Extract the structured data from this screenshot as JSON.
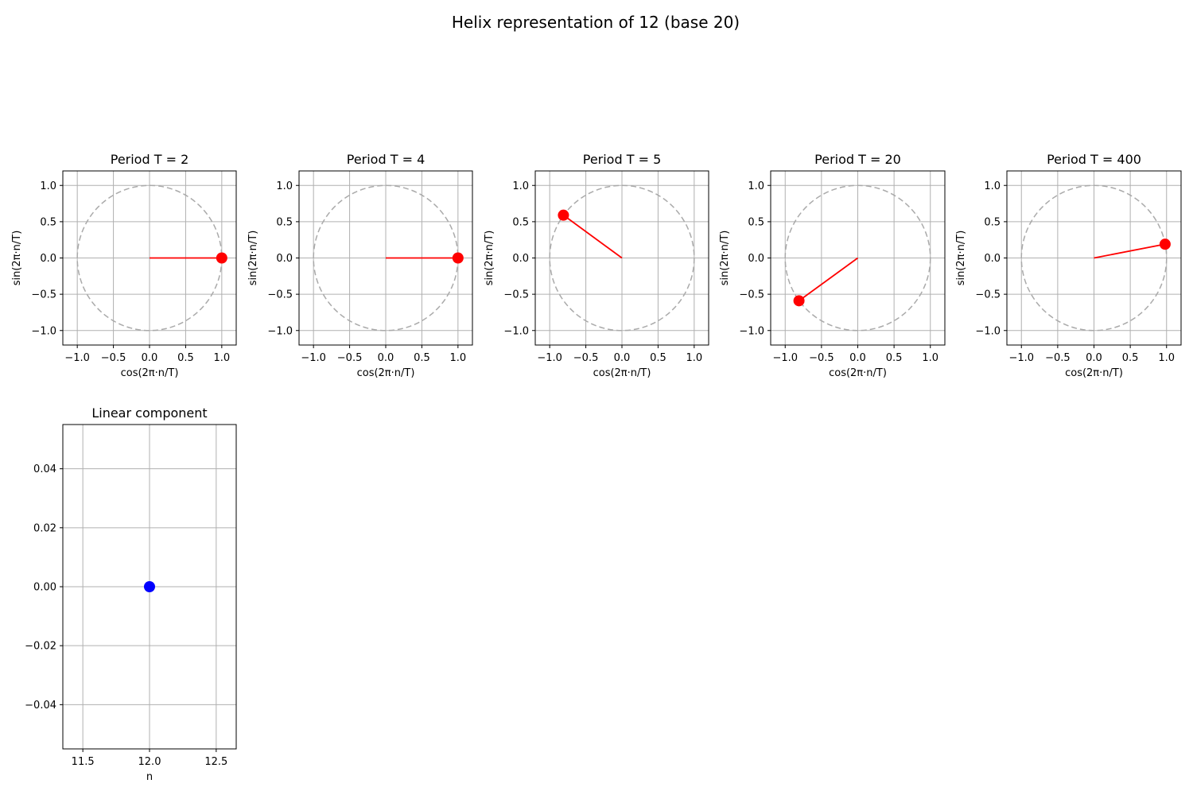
{
  "figure": {
    "title": "Helix representation of 12 (base 20)"
  },
  "chart_data": [
    {
      "type": "scatter",
      "title": "Period T = 2",
      "period": 2,
      "xlabel": "cos(2π·n/T)",
      "ylabel": "sin(2π·n/T)",
      "xlim": [
        -1.2,
        1.2
      ],
      "ylim": [
        -1.2,
        1.2
      ],
      "xticks": [
        -1.0,
        -0.5,
        0.0,
        0.5,
        1.0
      ],
      "yticks": [
        -1.0,
        -0.5,
        0.0,
        0.5,
        1.0
      ],
      "xtick_labels": [
        "−1.0",
        "−0.5",
        "0.0",
        "0.5",
        "1.0"
      ],
      "ytick_labels": [
        "−1.0",
        "−0.5",
        "0.0",
        "0.5",
        "1.0"
      ],
      "point": {
        "x": 1.0,
        "y": 0.0
      },
      "unit_circle": true,
      "grid": true,
      "point_color": "#ff0000",
      "circle_color": "#aaaaaa"
    },
    {
      "type": "scatter",
      "title": "Period T = 4",
      "period": 4,
      "xlabel": "cos(2π·n/T)",
      "ylabel": "sin(2π·n/T)",
      "xlim": [
        -1.2,
        1.2
      ],
      "ylim": [
        -1.2,
        1.2
      ],
      "xticks": [
        -1.0,
        -0.5,
        0.0,
        0.5,
        1.0
      ],
      "yticks": [
        -1.0,
        -0.5,
        0.0,
        0.5,
        1.0
      ],
      "xtick_labels": [
        "−1.0",
        "−0.5",
        "0.0",
        "0.5",
        "1.0"
      ],
      "ytick_labels": [
        "−1.0",
        "−0.5",
        "0.0",
        "0.5",
        "1.0"
      ],
      "point": {
        "x": 1.0,
        "y": 0.0
      },
      "unit_circle": true,
      "grid": true,
      "point_color": "#ff0000",
      "circle_color": "#aaaaaa"
    },
    {
      "type": "scatter",
      "title": "Period T = 5",
      "period": 5,
      "xlabel": "cos(2π·n/T)",
      "ylabel": "sin(2π·n/T)",
      "xlim": [
        -1.2,
        1.2
      ],
      "ylim": [
        -1.2,
        1.2
      ],
      "xticks": [
        -1.0,
        -0.5,
        0.0,
        0.5,
        1.0
      ],
      "yticks": [
        -1.0,
        -0.5,
        0.0,
        0.5,
        1.0
      ],
      "xtick_labels": [
        "−1.0",
        "−0.5",
        "0.0",
        "0.5",
        "1.0"
      ],
      "ytick_labels": [
        "−1.0",
        "−0.5",
        "0.0",
        "0.5",
        "1.0"
      ],
      "point": {
        "x": -0.81,
        "y": 0.59
      },
      "unit_circle": true,
      "grid": true,
      "point_color": "#ff0000",
      "circle_color": "#aaaaaa"
    },
    {
      "type": "scatter",
      "title": "Period T = 20",
      "period": 20,
      "xlabel": "cos(2π·n/T)",
      "ylabel": "sin(2π·n/T)",
      "xlim": [
        -1.2,
        1.2
      ],
      "ylim": [
        -1.2,
        1.2
      ],
      "xticks": [
        -1.0,
        -0.5,
        0.0,
        0.5,
        1.0
      ],
      "yticks": [
        -1.0,
        -0.5,
        0.0,
        0.5,
        1.0
      ],
      "xtick_labels": [
        "−1.0",
        "−0.5",
        "0.0",
        "0.5",
        "1.0"
      ],
      "ytick_labels": [
        "−1.0",
        "−0.5",
        "0.0",
        "0.5",
        "1.0"
      ],
      "point": {
        "x": -0.81,
        "y": -0.59
      },
      "unit_circle": true,
      "grid": true,
      "point_color": "#ff0000",
      "circle_color": "#aaaaaa"
    },
    {
      "type": "scatter",
      "title": "Period T = 400",
      "period": 400,
      "xlabel": "cos(2π·n/T)",
      "ylabel": "sin(2π·n/T)",
      "xlim": [
        -1.2,
        1.2
      ],
      "ylim": [
        -1.2,
        1.2
      ],
      "xticks": [
        -1.0,
        -0.5,
        0.0,
        0.5,
        1.0
      ],
      "yticks": [
        -1.0,
        -0.5,
        0.0,
        0.5,
        1.0
      ],
      "xtick_labels": [
        "−1.0",
        "−0.5",
        "0.0",
        "0.5",
        "1.0"
      ],
      "ytick_labels": [
        "−1.0",
        "−0.5",
        "0.0",
        "0.5",
        "1.0"
      ],
      "point": {
        "x": 0.98,
        "y": 0.19
      },
      "unit_circle": true,
      "grid": true,
      "point_color": "#ff0000",
      "circle_color": "#aaaaaa"
    },
    {
      "type": "scatter",
      "title": "Linear component",
      "xlabel": "n",
      "ylabel": "",
      "xlim": [
        11.35,
        12.65
      ],
      "ylim": [
        -0.055,
        0.055
      ],
      "xticks": [
        11.5,
        12.0,
        12.5
      ],
      "yticks": [
        -0.04,
        -0.02,
        0.0,
        0.02,
        0.04
      ],
      "xtick_labels": [
        "11.5",
        "12.0",
        "12.5"
      ],
      "ytick_labels": [
        "−0.04",
        "−0.02",
        "0.00",
        "0.02",
        "0.04"
      ],
      "point": {
        "x": 12,
        "y": 0
      },
      "unit_circle": false,
      "grid": true,
      "point_color": "#0000ff"
    }
  ]
}
